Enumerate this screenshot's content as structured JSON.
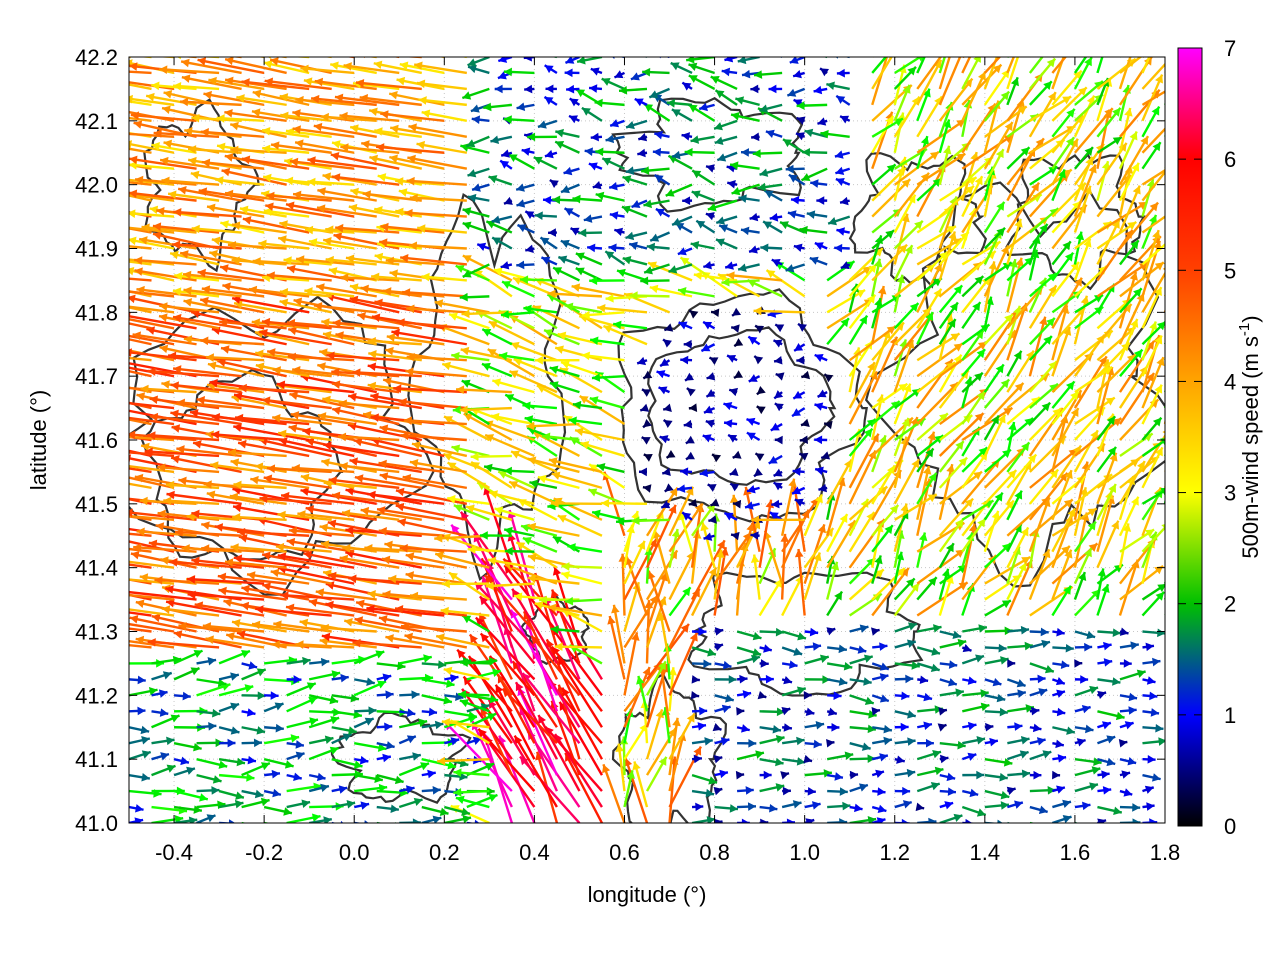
{
  "chart_data": {
    "type": "vector field with contours",
    "xlabel": "longitude (°)",
    "ylabel": "latitude (°)",
    "xlim": [
      -0.5,
      1.8
    ],
    "ylim": [
      41.0,
      42.2
    ],
    "x_ticks": [
      "-0.4",
      "-0.2",
      "0.0",
      "0.2",
      "0.4",
      "0.6",
      "0.8",
      "1.0",
      "1.2",
      "1.4",
      "1.6",
      "1.8"
    ],
    "x_tick_values": [
      -0.4,
      -0.2,
      0.0,
      0.2,
      0.4,
      0.6,
      0.8,
      1.0,
      1.2,
      1.4,
      1.6,
      1.8
    ],
    "y_ticks": [
      "41.0",
      "41.1",
      "41.2",
      "41.3",
      "41.4",
      "41.5",
      "41.6",
      "41.7",
      "41.8",
      "41.9",
      "42.0",
      "42.1",
      "42.2"
    ],
    "y_tick_values": [
      41.0,
      41.1,
      41.2,
      41.3,
      41.4,
      41.5,
      41.6,
      41.7,
      41.8,
      41.9,
      42.0,
      42.1,
      42.2
    ],
    "grid": true,
    "colorbar": {
      "label_main": "500m-wind speed (m s",
      "label_sup": "-1",
      "label_end": ")",
      "range": [
        0,
        7
      ],
      "ticks": [
        "0",
        "1",
        "2",
        "3",
        "4",
        "5",
        "6",
        "7"
      ],
      "tick_values": [
        0,
        1,
        2,
        3,
        4,
        5,
        6,
        7
      ],
      "colors": [
        "#000000",
        "#0000ff",
        "#00ff00",
        "#ffff00",
        "#ffa500",
        "#ff0000",
        "#ff00ff"
      ]
    },
    "wind_regions": [
      {
        "region": "west, lat 41.3-42.2",
        "direction_deg_toward": 175,
        "speed": 3.8
      },
      {
        "region": "southwest, lat 41.0-41.25",
        "direction_deg_toward": 10,
        "speed": 1.8
      },
      {
        "region": "jet near lon 0.35-0.55, lat 41.0-41.4",
        "direction_deg_toward": 120,
        "speed": 6.5
      },
      {
        "region": "central basin, lon 0.65-1.05, lat 41.45-41.8",
        "direction_deg_toward": 180,
        "speed": 0.6
      },
      {
        "region": "north-central, lon 0.1-1.2, lat 41.85-42.2",
        "direction_deg_toward": 170,
        "speed": 1.5
      },
      {
        "region": "east, lon 1.1-1.8, lat 41.3-42.1",
        "direction_deg_toward": 60,
        "speed": 3.0
      },
      {
        "region": "southeast, lon 0.8-1.8, lat 41.0-41.3",
        "direction_deg_toward": 0,
        "speed": 1.0
      }
    ]
  }
}
